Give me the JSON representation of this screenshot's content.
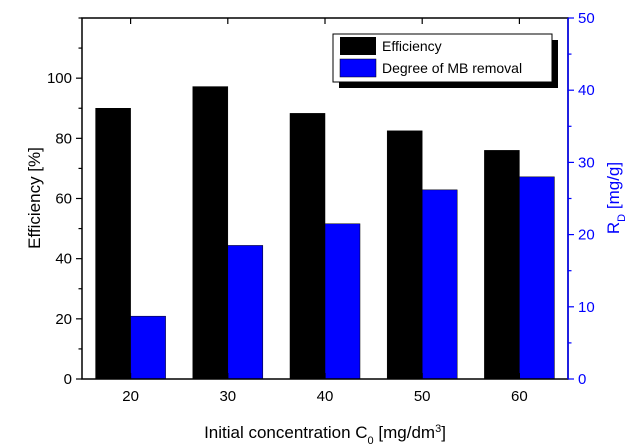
{
  "chart_data": {
    "type": "bar",
    "categories": [
      "20",
      "30",
      "40",
      "50",
      "60"
    ],
    "series": [
      {
        "name": "Efficiency",
        "axis": "left",
        "color": "#000000",
        "values": [
          90,
          97.2,
          88.3,
          82.5,
          76
        ]
      },
      {
        "name": "Degree of MB removal",
        "axis": "right",
        "color": "#0000ff",
        "values": [
          8.7,
          18.5,
          21.5,
          26.2,
          28
        ]
      }
    ],
    "xlabel": {
      "main": "Initial concentration C",
      "sub": "0",
      "mid": " [mg/dm",
      "sup": "3",
      "end": "]"
    },
    "ylabel_left": "Efficiency [%]",
    "ylabel_right": {
      "main": "R",
      "sub": "D",
      "end": " [mg/g]"
    },
    "ylim_left": [
      0,
      120
    ],
    "yticks_left": [
      0,
      20,
      40,
      60,
      80,
      100
    ],
    "ylim_right": [
      0,
      50
    ],
    "yticks_right": [
      0,
      10,
      20,
      30,
      40,
      50
    ],
    "legend_position": "top-right",
    "grid": false,
    "right_axis_color": "#0000ff"
  }
}
